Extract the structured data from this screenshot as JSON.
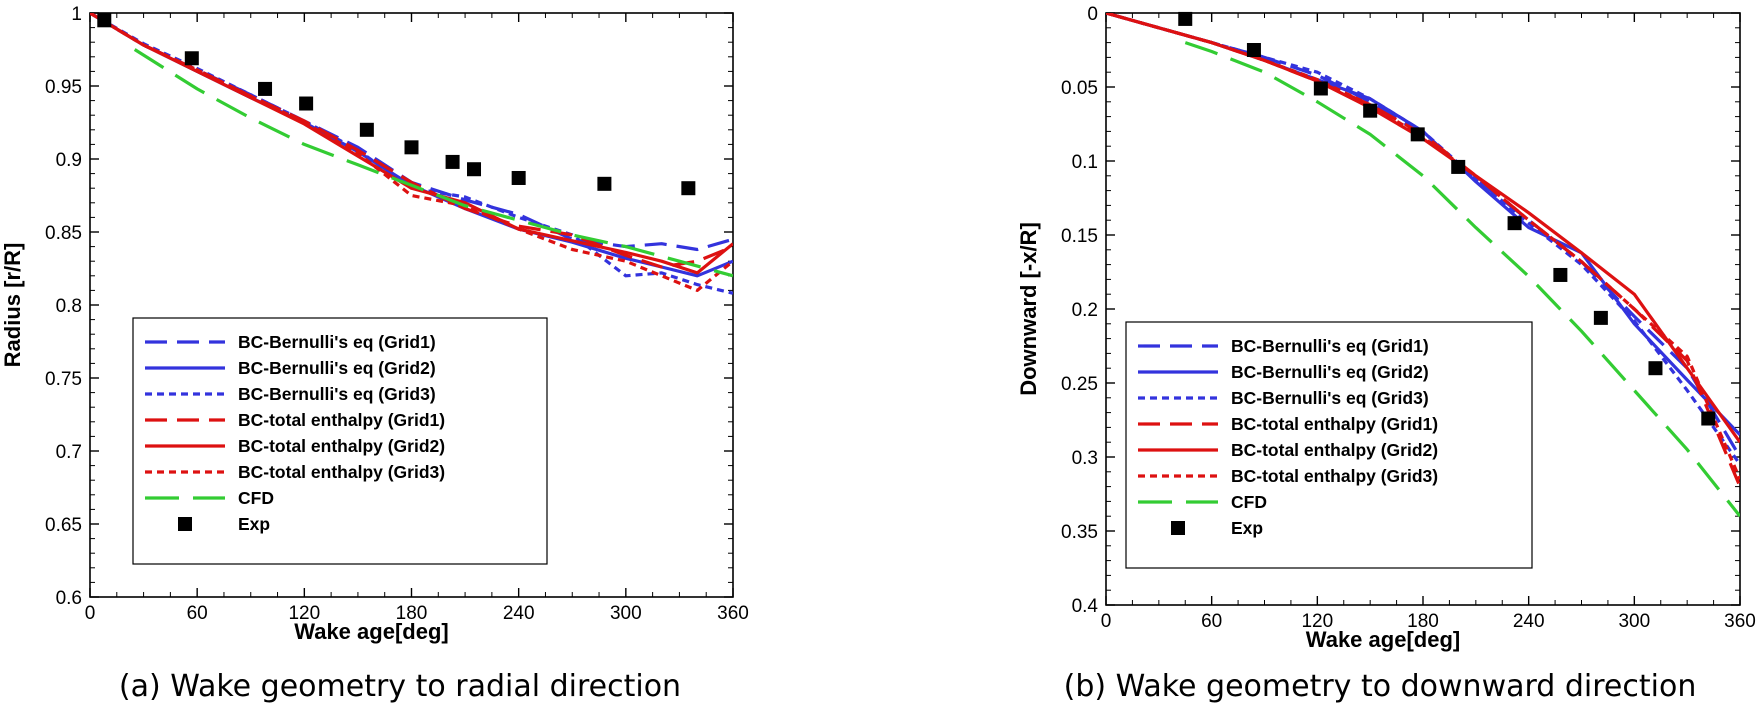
{
  "chart_data": [
    {
      "type": "line",
      "caption": "(a) Wake geometry to radial direction",
      "xlabel": "Wake age[deg]",
      "ylabel": "Radius [r/R]",
      "xlim": [
        0,
        360
      ],
      "ylim": [
        0.6,
        1
      ],
      "xticks": [
        "0",
        "60",
        "120",
        "180",
        "240",
        "300",
        "360"
      ],
      "yticks": [
        "0.6",
        "0.65",
        "0.7",
        "0.75",
        "0.8",
        "0.85",
        "0.9",
        "0.95",
        "1"
      ],
      "legend_position": "bottom-left",
      "series": [
        {
          "name": "BC-Bernulli's eq (Grid1)",
          "color": "#3333dd",
          "dash": "long-dash",
          "x": [
            0,
            30,
            60,
            90,
            120,
            150,
            180,
            210,
            240,
            270,
            300,
            320,
            340,
            360
          ],
          "y": [
            1.0,
            0.978,
            0.961,
            0.944,
            0.926,
            0.908,
            0.884,
            0.872,
            0.862,
            0.845,
            0.84,
            0.842,
            0.838,
            0.845
          ]
        },
        {
          "name": "BC-Bernulli's eq (Grid2)",
          "color": "#3333dd",
          "dash": "solid",
          "x": [
            0,
            30,
            60,
            90,
            120,
            150,
            180,
            210,
            240,
            270,
            300,
            320,
            340,
            360
          ],
          "y": [
            1.0,
            0.978,
            0.96,
            0.942,
            0.925,
            0.905,
            0.882,
            0.866,
            0.852,
            0.843,
            0.832,
            0.826,
            0.82,
            0.83
          ]
        },
        {
          "name": "BC-Bernulli's eq (Grid3)",
          "color": "#3333dd",
          "dash": "short-dash",
          "x": [
            0,
            30,
            60,
            90,
            120,
            150,
            180,
            210,
            240,
            270,
            300,
            320,
            340,
            360
          ],
          "y": [
            1.0,
            0.979,
            0.962,
            0.944,
            0.926,
            0.906,
            0.88,
            0.874,
            0.86,
            0.848,
            0.82,
            0.822,
            0.814,
            0.808
          ]
        },
        {
          "name": "BC-total enthalpy (Grid1)",
          "color": "#dd1111",
          "dash": "long-dash",
          "x": [
            0,
            30,
            60,
            90,
            120,
            150,
            180,
            210,
            240,
            270,
            300,
            320,
            340,
            360
          ],
          "y": [
            1.0,
            0.978,
            0.961,
            0.943,
            0.926,
            0.906,
            0.884,
            0.866,
            0.854,
            0.848,
            0.834,
            0.826,
            0.83,
            0.84
          ]
        },
        {
          "name": "BC-total enthalpy (Grid2)",
          "color": "#dd1111",
          "dash": "solid",
          "x": [
            0,
            30,
            60,
            90,
            120,
            150,
            180,
            210,
            240,
            270,
            300,
            320,
            340,
            360
          ],
          "y": [
            1.0,
            0.978,
            0.96,
            0.942,
            0.924,
            0.902,
            0.88,
            0.87,
            0.852,
            0.844,
            0.836,
            0.83,
            0.822,
            0.842
          ]
        },
        {
          "name": "BC-total enthalpy (Grid3)",
          "color": "#dd1111",
          "dash": "short-dash",
          "x": [
            0,
            30,
            60,
            90,
            120,
            150,
            180,
            210,
            240,
            270,
            300,
            320,
            340,
            360
          ],
          "y": [
            1.0,
            0.978,
            0.961,
            0.943,
            0.925,
            0.904,
            0.875,
            0.868,
            0.852,
            0.838,
            0.83,
            0.82,
            0.81,
            0.83
          ]
        },
        {
          "name": "CFD",
          "color": "#33cc33",
          "dash": "extra-long-dash",
          "x": [
            25,
            60,
            90,
            120,
            150,
            180,
            210,
            240,
            270,
            300,
            330,
            360
          ],
          "y": [
            0.975,
            0.948,
            0.928,
            0.91,
            0.896,
            0.882,
            0.868,
            0.858,
            0.848,
            0.84,
            0.83,
            0.82
          ]
        },
        {
          "name": "Exp",
          "color": "#000000",
          "marker": "square",
          "x": [
            8,
            57,
            98,
            121,
            155,
            180,
            203,
            215,
            240,
            288,
            335
          ],
          "y": [
            0.995,
            0.969,
            0.948,
            0.938,
            0.92,
            0.908,
            0.898,
            0.893,
            0.887,
            0.883,
            0.88
          ]
        }
      ]
    },
    {
      "type": "line",
      "caption": "(b) Wake geometry to downward direction",
      "xlabel": "Wake age[deg]",
      "ylabel": "Downward [-x/R]",
      "xlim": [
        0,
        360
      ],
      "ylim": [
        0,
        0.4
      ],
      "y_inverted": true,
      "xticks": [
        "0",
        "60",
        "120",
        "180",
        "240",
        "300",
        "360"
      ],
      "yticks": [
        "0",
        "0.05",
        "0.1",
        "0.15",
        "0.2",
        "0.25",
        "0.3",
        "0.35",
        "0.4"
      ],
      "legend_position": "bottom-left",
      "series": [
        {
          "name": "BC-Bernulli's eq (Grid1)",
          "color": "#3333dd",
          "dash": "long-dash",
          "x": [
            0,
            30,
            60,
            90,
            120,
            150,
            180,
            210,
            240,
            270,
            300,
            330,
            360
          ],
          "y": [
            0,
            0.01,
            0.02,
            0.03,
            0.042,
            0.06,
            0.082,
            0.112,
            0.14,
            0.168,
            0.205,
            0.24,
            0.3
          ]
        },
        {
          "name": "BC-Bernulli's eq (Grid2)",
          "color": "#3333dd",
          "dash": "solid",
          "x": [
            0,
            30,
            60,
            90,
            120,
            150,
            180,
            210,
            240,
            270,
            300,
            330,
            360
          ],
          "y": [
            0,
            0.01,
            0.02,
            0.032,
            0.045,
            0.058,
            0.08,
            0.114,
            0.145,
            0.162,
            0.21,
            0.248,
            0.285
          ]
        },
        {
          "name": "BC-Bernulli's eq (Grid3)",
          "color": "#3333dd",
          "dash": "short-dash",
          "x": [
            0,
            30,
            60,
            90,
            120,
            150,
            180,
            210,
            240,
            270,
            300,
            330,
            360
          ],
          "y": [
            0,
            0.01,
            0.02,
            0.03,
            0.04,
            0.058,
            0.08,
            0.112,
            0.142,
            0.17,
            0.208,
            0.255,
            0.305
          ]
        },
        {
          "name": "BC-total enthalpy (Grid1)",
          "color": "#dd1111",
          "dash": "long-dash",
          "x": [
            0,
            30,
            60,
            90,
            120,
            150,
            180,
            210,
            240,
            270,
            300,
            330,
            360
          ],
          "y": [
            0,
            0.01,
            0.02,
            0.032,
            0.046,
            0.062,
            0.082,
            0.11,
            0.14,
            0.168,
            0.2,
            0.235,
            0.32
          ]
        },
        {
          "name": "BC-total enthalpy (Grid2)",
          "color": "#dd1111",
          "dash": "solid",
          "x": [
            0,
            30,
            60,
            90,
            120,
            150,
            180,
            210,
            240,
            270,
            300,
            330,
            360
          ],
          "y": [
            0,
            0.01,
            0.02,
            0.032,
            0.046,
            0.064,
            0.085,
            0.11,
            0.135,
            0.162,
            0.19,
            0.24,
            0.29
          ]
        },
        {
          "name": "BC-total enthalpy (Grid3)",
          "color": "#dd1111",
          "dash": "short-dash",
          "x": [
            0,
            30,
            60,
            90,
            120,
            150,
            180,
            210,
            240,
            270,
            300,
            330,
            360
          ],
          "y": [
            0,
            0.01,
            0.02,
            0.032,
            0.045,
            0.062,
            0.084,
            0.11,
            0.14,
            0.168,
            0.2,
            0.232,
            0.315
          ]
        },
        {
          "name": "CFD",
          "color": "#33cc33",
          "dash": "extra-long-dash",
          "x": [
            45,
            60,
            90,
            120,
            150,
            180,
            210,
            240,
            270,
            300,
            330,
            360
          ],
          "y": [
            0.02,
            0.026,
            0.04,
            0.06,
            0.082,
            0.11,
            0.145,
            0.178,
            0.215,
            0.255,
            0.295,
            0.34
          ]
        },
        {
          "name": "Exp",
          "color": "#000000",
          "marker": "square",
          "x": [
            45,
            84,
            122,
            150,
            177,
            200,
            232,
            258,
            281,
            312,
            342
          ],
          "y": [
            0.004,
            0.025,
            0.051,
            0.066,
            0.082,
            0.104,
            0.142,
            0.177,
            0.206,
            0.24,
            0.274
          ]
        }
      ]
    }
  ]
}
